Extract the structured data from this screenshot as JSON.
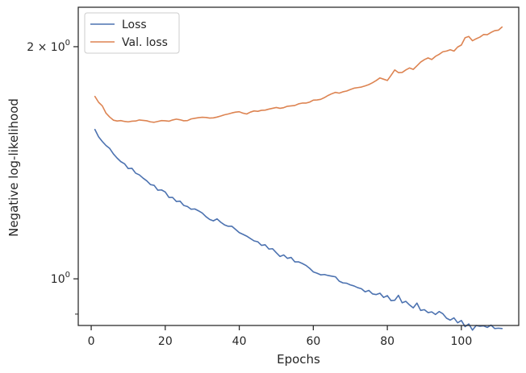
{
  "chart_data": {
    "type": "line",
    "xlabel": "Epochs",
    "ylabel": "Negative log-likelihood",
    "y_scale": "log",
    "xlim": [
      -3.5,
      115.5
    ],
    "ylim": [
      0.87,
      2.25
    ],
    "grid": false,
    "legend_position": "top-left",
    "x_ticks": [
      {
        "value": 0,
        "label": "0"
      },
      {
        "value": 20,
        "label": "20"
      },
      {
        "value": 40,
        "label": "40"
      },
      {
        "value": 60,
        "label": "60"
      },
      {
        "value": 80,
        "label": "80"
      },
      {
        "value": 100,
        "label": "100"
      }
    ],
    "y_major_ticks": [
      {
        "value": 1.0,
        "label_main": "10",
        "label_sup": "0",
        "label_prefix": ""
      },
      {
        "value": 2.0,
        "label_main": "10",
        "label_sup": "0",
        "label_prefix": "2 × "
      }
    ],
    "y_minor_ticks": [
      0.9
    ],
    "series": [
      {
        "name": "Loss",
        "color": "#4c72b0",
        "x": [
          1,
          2,
          3,
          4,
          5,
          6,
          7,
          8,
          9,
          10,
          11,
          12,
          13,
          14,
          15,
          16,
          17,
          18,
          19,
          20,
          21,
          22,
          23,
          24,
          25,
          26,
          27,
          28,
          29,
          30,
          31,
          32,
          33,
          34,
          35,
          36,
          37,
          38,
          39,
          40,
          41,
          42,
          43,
          44,
          45,
          46,
          47,
          48,
          49,
          50,
          51,
          52,
          53,
          54,
          55,
          56,
          57,
          58,
          59,
          60,
          61,
          62,
          63,
          64,
          65,
          66,
          67,
          68,
          69,
          70,
          71,
          72,
          73,
          74,
          75,
          76,
          77,
          78,
          79,
          80,
          81,
          82,
          83,
          84,
          85,
          86,
          87,
          88,
          89,
          90,
          91,
          92,
          93,
          94,
          95,
          96,
          97,
          98,
          99,
          100,
          101,
          102,
          103,
          104,
          105,
          106,
          107,
          108,
          109,
          110,
          111
        ],
        "values": [
          1.562,
          1.528,
          1.507,
          1.489,
          1.476,
          1.452,
          1.434,
          1.419,
          1.41,
          1.39,
          1.391,
          1.371,
          1.364,
          1.351,
          1.34,
          1.325,
          1.322,
          1.303,
          1.304,
          1.296,
          1.275,
          1.275,
          1.26,
          1.261,
          1.245,
          1.241,
          1.231,
          1.232,
          1.225,
          1.217,
          1.204,
          1.194,
          1.189,
          1.196,
          1.184,
          1.175,
          1.17,
          1.17,
          1.159,
          1.148,
          1.142,
          1.136,
          1.128,
          1.12,
          1.117,
          1.105,
          1.107,
          1.093,
          1.094,
          1.081,
          1.069,
          1.074,
          1.063,
          1.066,
          1.052,
          1.052,
          1.047,
          1.041,
          1.032,
          1.021,
          1.017,
          1.012,
          1.013,
          1.01,
          1.008,
          1.006,
          0.993,
          0.988,
          0.987,
          0.982,
          0.979,
          0.974,
          0.971,
          0.962,
          0.966,
          0.956,
          0.954,
          0.958,
          0.946,
          0.951,
          0.937,
          0.938,
          0.952,
          0.931,
          0.935,
          0.925,
          0.917,
          0.93,
          0.91,
          0.912,
          0.904,
          0.906,
          0.899,
          0.907,
          0.901,
          0.889,
          0.884,
          0.89,
          0.877,
          0.883,
          0.867,
          0.874,
          0.858,
          0.87,
          0.868,
          0.869,
          0.865,
          0.871,
          0.862,
          0.863,
          0.862
        ]
      },
      {
        "name": "Val. loss",
        "color": "#dd8452",
        "x": [
          1,
          2,
          3,
          4,
          5,
          6,
          7,
          8,
          9,
          10,
          11,
          12,
          13,
          14,
          15,
          16,
          17,
          18,
          19,
          20,
          21,
          22,
          23,
          24,
          25,
          26,
          27,
          28,
          29,
          30,
          31,
          32,
          33,
          34,
          35,
          36,
          37,
          38,
          39,
          40,
          41,
          42,
          43,
          44,
          45,
          46,
          47,
          48,
          49,
          50,
          51,
          52,
          53,
          54,
          55,
          56,
          57,
          58,
          59,
          60,
          61,
          62,
          63,
          64,
          65,
          66,
          67,
          68,
          69,
          70,
          71,
          72,
          73,
          74,
          75,
          76,
          77,
          78,
          79,
          80,
          81,
          82,
          83,
          84,
          85,
          86,
          87,
          88,
          89,
          90,
          91,
          92,
          93,
          94,
          95,
          96,
          97,
          98,
          99,
          100,
          101,
          102,
          103,
          104,
          105,
          106,
          107,
          108,
          109,
          110,
          111
        ],
        "values": [
          1.724,
          1.694,
          1.676,
          1.64,
          1.621,
          1.606,
          1.602,
          1.604,
          1.6,
          1.598,
          1.601,
          1.602,
          1.607,
          1.605,
          1.603,
          1.598,
          1.596,
          1.6,
          1.604,
          1.603,
          1.601,
          1.607,
          1.611,
          1.608,
          1.603,
          1.604,
          1.612,
          1.615,
          1.618,
          1.62,
          1.619,
          1.616,
          1.617,
          1.621,
          1.626,
          1.632,
          1.636,
          1.641,
          1.645,
          1.647,
          1.64,
          1.636,
          1.645,
          1.651,
          1.649,
          1.654,
          1.655,
          1.66,
          1.664,
          1.668,
          1.664,
          1.667,
          1.674,
          1.676,
          1.678,
          1.686,
          1.69,
          1.69,
          1.695,
          1.705,
          1.706,
          1.709,
          1.718,
          1.729,
          1.738,
          1.745,
          1.741,
          1.748,
          1.752,
          1.76,
          1.767,
          1.77,
          1.773,
          1.779,
          1.786,
          1.796,
          1.808,
          1.822,
          1.815,
          1.808,
          1.836,
          1.866,
          1.851,
          1.852,
          1.866,
          1.877,
          1.869,
          1.889,
          1.91,
          1.924,
          1.934,
          1.925,
          1.943,
          1.955,
          1.97,
          1.974,
          1.982,
          1.974,
          1.998,
          2.01,
          2.054,
          2.062,
          2.036,
          2.048,
          2.058,
          2.074,
          2.073,
          2.087,
          2.098,
          2.101,
          2.121
        ]
      }
    ]
  }
}
